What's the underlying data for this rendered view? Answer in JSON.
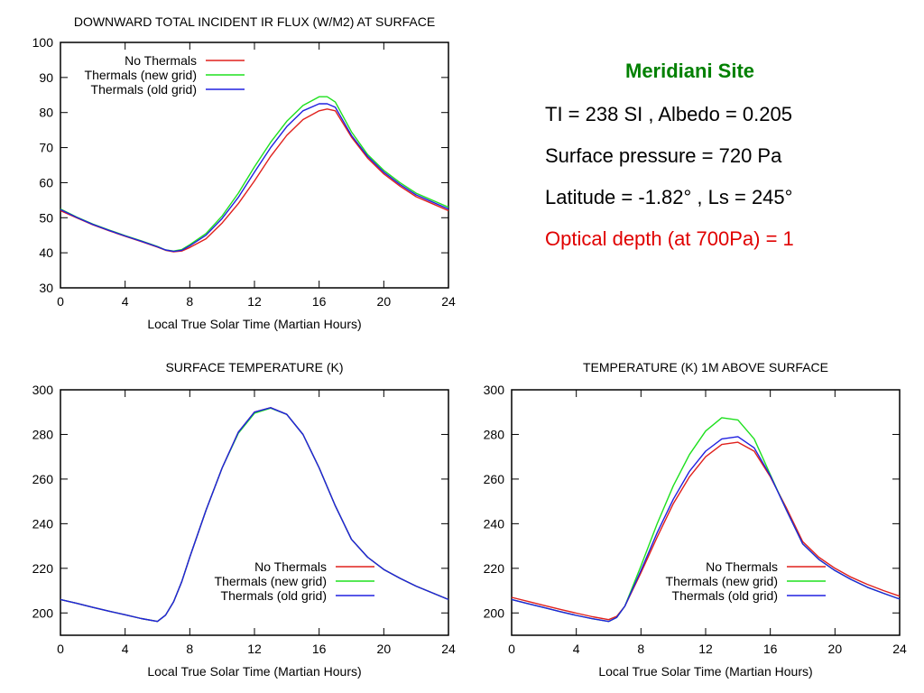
{
  "info": {
    "site": "Meridiani Site",
    "line1": "TI = 238 SI , Albedo = 0.205",
    "line2": "Surface pressure = 720 Pa",
    "line3": "Latitude = -1.82° , Ls = 245°",
    "line4": "Optical depth (at 700Pa) = 1"
  },
  "colors": {
    "no_thermals": "#e0201c",
    "thermals_new": "#1ee01e",
    "thermals_old": "#2020e0",
    "info_title": "#008000",
    "info_optical": "#e00000"
  },
  "chart_data": [
    {
      "type": "line",
      "title": "DOWNWARD TOTAL INCIDENT IR FLUX (W/M2) AT SURFACE",
      "xlabel": "Local True Solar Time (Martian Hours)",
      "ylabel": "",
      "xlim": [
        0,
        24
      ],
      "ylim": [
        30,
        100
      ],
      "xticks": [
        0,
        4,
        8,
        12,
        16,
        20,
        24
      ],
      "yticks": [
        30,
        40,
        50,
        60,
        70,
        80,
        90,
        100
      ],
      "legend_position": "top-left",
      "grid": false,
      "x": [
        0,
        1,
        2,
        3,
        4,
        5,
        6,
        6.5,
        7,
        7.5,
        8,
        9,
        10,
        11,
        12,
        13,
        14,
        15,
        16,
        16.5,
        17,
        18,
        19,
        20,
        21,
        22,
        23,
        24
      ],
      "series": [
        {
          "name": "No Thermals",
          "values": [
            52,
            50,
            48,
            46.3,
            44.7,
            43.2,
            41.6,
            40.7,
            40.3,
            40.5,
            41.5,
            44,
            48.5,
            54,
            60.5,
            67.5,
            73.5,
            78,
            80.5,
            81,
            80.5,
            73,
            67,
            62.5,
            59,
            56,
            54,
            52
          ]
        },
        {
          "name": "Thermals (new grid)",
          "values": [
            52.5,
            50.2,
            48.2,
            46.5,
            44.9,
            43.4,
            41.8,
            40.8,
            40.5,
            40.9,
            42.3,
            45.5,
            50.5,
            57,
            64.5,
            71.5,
            77.5,
            82,
            84.5,
            84.5,
            83,
            74.5,
            68,
            63.5,
            60,
            57,
            55,
            53
          ]
        },
        {
          "name": "Thermals (old grid)",
          "values": [
            52.3,
            50.1,
            48.1,
            46.4,
            44.8,
            43.3,
            41.7,
            40.8,
            40.4,
            40.7,
            42,
            45,
            49.8,
            55.8,
            63,
            70,
            76,
            80.5,
            82.5,
            82.5,
            81.5,
            73.5,
            67.5,
            63,
            59.5,
            56.5,
            54.5,
            52.5
          ]
        }
      ]
    },
    {
      "type": "line",
      "title": "SURFACE TEMPERATURE (K)",
      "xlabel": "Local True Solar Time (Martian Hours)",
      "ylabel": "",
      "xlim": [
        0,
        24
      ],
      "ylim": [
        190,
        300
      ],
      "xticks": [
        0,
        4,
        8,
        12,
        16,
        20,
        24
      ],
      "yticks": [
        200,
        220,
        240,
        260,
        280,
        300
      ],
      "legend_position": "bottom-right",
      "grid": false,
      "x": [
        0,
        1,
        2,
        3,
        4,
        5,
        6,
        6.5,
        7,
        7.5,
        8,
        9,
        10,
        11,
        12,
        13,
        14,
        15,
        16,
        17,
        18,
        19,
        20,
        21,
        22,
        23,
        24
      ],
      "series": [
        {
          "name": "No Thermals",
          "values": [
            206,
            204.3,
            202.5,
            200.8,
            199.2,
            197.5,
            196.2,
            199,
            205,
            214,
            225,
            246,
            265,
            281,
            290,
            292,
            289,
            280,
            265,
            248,
            233,
            225,
            219.5,
            215.5,
            212,
            209,
            206
          ]
        },
        {
          "name": "Thermals (new grid)",
          "values": [
            206,
            204.3,
            202.5,
            200.8,
            199.2,
            197.5,
            196.2,
            199,
            205,
            214,
            225,
            246,
            265,
            280.5,
            289.5,
            291.8,
            289,
            280,
            265,
            248,
            233,
            225,
            219.5,
            215.5,
            212,
            209,
            206
          ]
        },
        {
          "name": "Thermals (old grid)",
          "values": [
            206,
            204.3,
            202.5,
            200.8,
            199.2,
            197.5,
            196.2,
            199,
            205,
            214,
            225,
            246,
            265,
            281,
            290,
            292,
            289,
            280,
            265,
            248,
            233,
            225,
            219.5,
            215.5,
            212,
            209,
            206
          ]
        }
      ]
    },
    {
      "type": "line",
      "title": "TEMPERATURE (K) 1M ABOVE SURFACE",
      "xlabel": "Local True Solar Time (Martian Hours)",
      "ylabel": "",
      "xlim": [
        0,
        24
      ],
      "ylim": [
        190,
        300
      ],
      "xticks": [
        0,
        4,
        8,
        12,
        16,
        20,
        24
      ],
      "yticks": [
        200,
        220,
        240,
        260,
        280,
        300
      ],
      "legend_position": "bottom-right",
      "grid": false,
      "x": [
        0,
        1,
        2,
        3,
        4,
        5,
        6,
        6.5,
        7,
        8,
        9,
        10,
        11,
        12,
        13,
        14,
        15,
        16,
        17,
        18,
        19,
        20,
        21,
        22,
        23,
        24
      ],
      "series": [
        {
          "name": "No Thermals",
          "values": [
            207,
            205.2,
            203.4,
            201.6,
            199.9,
            198.3,
            197,
            198.5,
            203,
            218,
            234,
            249,
            261,
            270,
            275.5,
            276.5,
            272.5,
            261,
            247,
            232,
            225,
            220,
            216,
            212.8,
            210,
            207.5
          ]
        },
        {
          "name": "Thermals (new grid)",
          "values": [
            206,
            204.2,
            202.4,
            200.6,
            198.9,
            197.4,
            196.2,
            198,
            203,
            221,
            240,
            257,
            271,
            281.5,
            287.5,
            286.5,
            278,
            262,
            246,
            231,
            224,
            219,
            215,
            211.5,
            208.8,
            206.2
          ]
        },
        {
          "name": "Thermals (old grid)",
          "values": [
            206,
            204.2,
            202.4,
            200.6,
            198.9,
            197.4,
            196.2,
            198,
            203,
            219,
            236,
            251,
            263.5,
            272.5,
            278,
            279,
            274,
            261.5,
            246,
            231,
            224,
            219,
            215,
            211.5,
            208.8,
            206.2
          ]
        }
      ]
    }
  ]
}
